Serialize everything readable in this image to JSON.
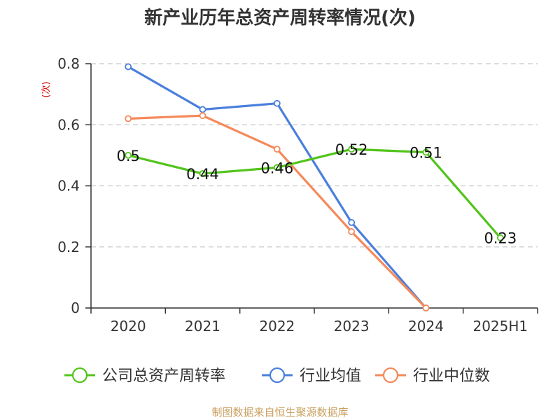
{
  "chart_data": {
    "type": "line",
    "title": "新产业历年总资产周转率情况(次)",
    "ylabel": "(次)",
    "categories": [
      "2020",
      "2021",
      "2022",
      "2023",
      "2024",
      "2025H1"
    ],
    "ylim": [
      0,
      0.8
    ],
    "yticks": [
      0,
      0.2,
      0.4,
      0.6,
      0.8
    ],
    "ytick_labels": [
      "0",
      "0.2",
      "0.4",
      "0.6",
      "0.8"
    ],
    "grid": true,
    "legend_position": "bottom",
    "series": [
      {
        "name": "公司总资产周转率",
        "color": "#52c41a",
        "values": [
          0.5,
          0.44,
          0.46,
          0.52,
          0.51,
          0.23
        ],
        "labels": [
          "0.5",
          "0.44",
          "0.46",
          "0.52",
          "0.51",
          "0.23"
        ]
      },
      {
        "name": "行业均值",
        "color": "#4a7fdc",
        "values": [
          0.79,
          0.65,
          0.67,
          0.28,
          0,
          null
        ]
      },
      {
        "name": "行业中位数",
        "color": "#f5895a",
        "values": [
          0.62,
          0.63,
          0.52,
          0.25,
          0,
          null
        ]
      }
    ]
  },
  "source": "制图数据来自恒生聚源数据库"
}
